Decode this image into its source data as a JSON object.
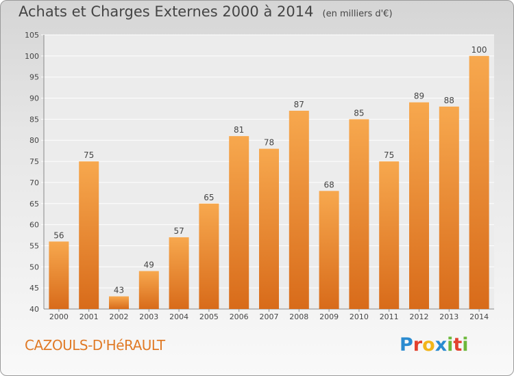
{
  "title": "Achats et Charges Externes 2000 à 2014",
  "unit": "(en milliers d'€)",
  "commune": "CAZOULS-D'HéRAULT",
  "logo": {
    "letters": [
      "P",
      "r",
      "o",
      "x",
      "i",
      "t",
      "i"
    ],
    "colors": [
      "#2a8bd0",
      "#e2412e",
      "#f2b51a",
      "#2a8bd0",
      "#6cb83a",
      "#e2412e",
      "#6cb83a"
    ]
  },
  "chart_data": {
    "type": "bar",
    "categories": [
      "2000",
      "2001",
      "2002",
      "2003",
      "2004",
      "2005",
      "2006",
      "2007",
      "2008",
      "2009",
      "2010",
      "2011",
      "2012",
      "2013",
      "2014"
    ],
    "values": [
      56,
      75,
      43,
      49,
      57,
      65,
      81,
      78,
      87,
      68,
      85,
      75,
      89,
      88,
      100
    ],
    "ylim": [
      40,
      105
    ],
    "yticks": [
      40,
      45,
      50,
      55,
      60,
      65,
      70,
      75,
      80,
      85,
      90,
      95,
      100,
      105
    ],
    "grid": true,
    "bar_colors": [
      "#f7a84e",
      "#d86b1a"
    ]
  }
}
